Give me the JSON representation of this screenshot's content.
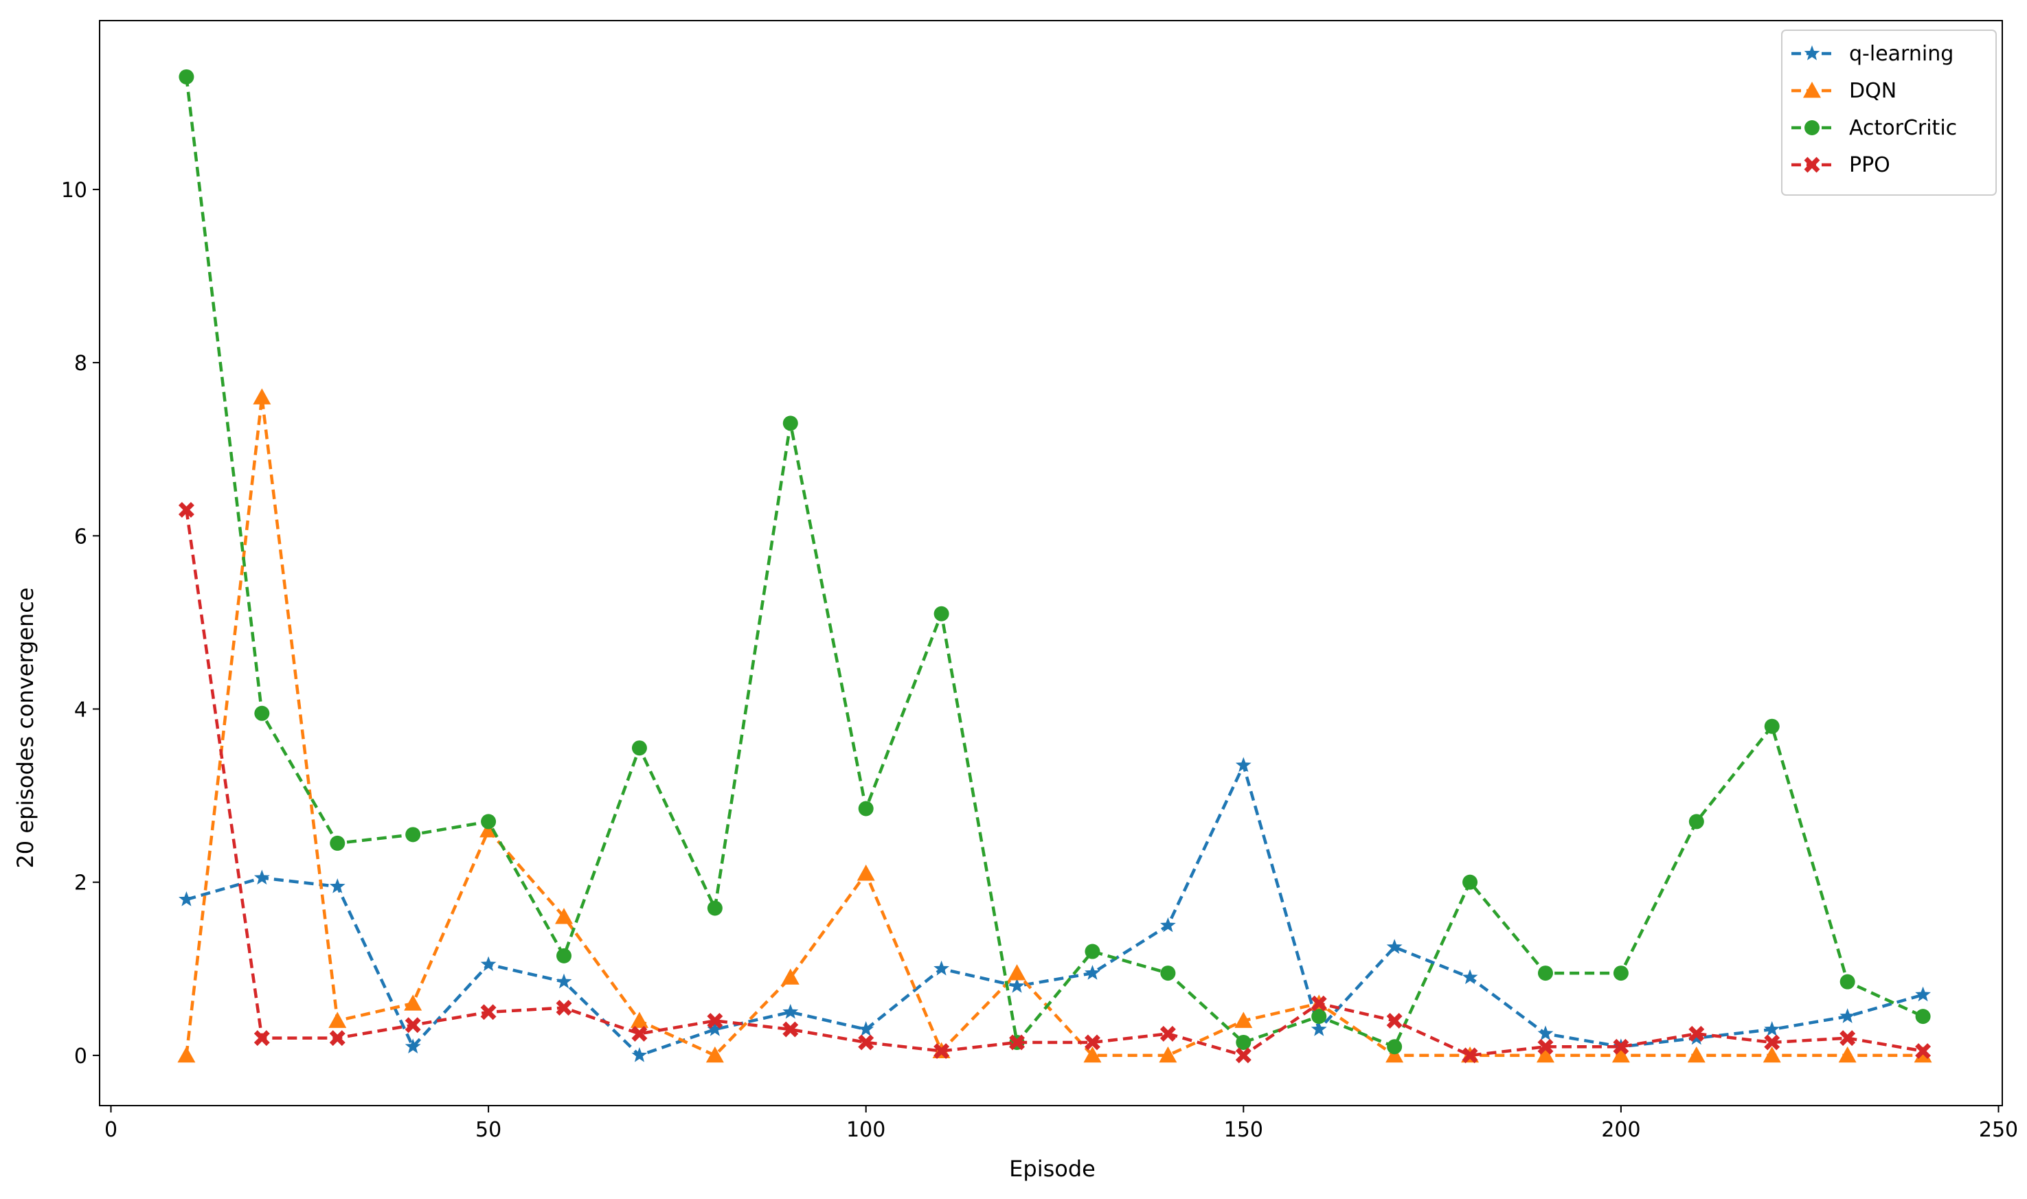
{
  "chart_data": {
    "type": "line",
    "title": "",
    "xlabel": "Episode",
    "ylabel": "20 episodes convergence",
    "xlim": [
      -1.5,
      250.5
    ],
    "ylim": [
      -0.58,
      11.95
    ],
    "xticks": [
      0,
      50,
      100,
      150,
      200,
      250
    ],
    "yticks": [
      0,
      2,
      4,
      6,
      8,
      10
    ],
    "grid": false,
    "legend_position": "top-right",
    "line_style": "dashed",
    "x": [
      10,
      20,
      30,
      40,
      50,
      60,
      70,
      80,
      90,
      100,
      110,
      120,
      130,
      140,
      150,
      160,
      170,
      180,
      190,
      200,
      210,
      220,
      230,
      240
    ],
    "series": [
      {
        "name": "q-learning",
        "color": "#1f77b4",
        "marker": "star",
        "values": [
          1.8,
          2.05,
          1.95,
          0.1,
          1.05,
          0.85,
          0.0,
          0.3,
          0.5,
          0.3,
          1.0,
          0.8,
          0.95,
          1.5,
          3.35,
          0.3,
          1.25,
          0.9,
          0.25,
          0.1,
          0.2,
          0.3,
          0.45,
          0.7
        ]
      },
      {
        "name": "DQN",
        "color": "#ff7f0e",
        "marker": "triangle",
        "values": [
          0.0,
          7.6,
          0.4,
          0.6,
          2.6,
          1.6,
          0.4,
          0.0,
          0.9,
          2.1,
          0.05,
          0.95,
          0.0,
          0.0,
          0.4,
          0.6,
          0.0,
          0.0,
          0.0,
          0.0,
          0.0,
          0.0,
          0.0,
          0.0
        ]
      },
      {
        "name": "ActorCritic",
        "color": "#2ca02c",
        "marker": "circle",
        "values": [
          11.3,
          3.95,
          2.45,
          2.55,
          2.7,
          1.15,
          3.55,
          1.7,
          7.3,
          2.85,
          5.1,
          0.15,
          1.2,
          0.95,
          0.15,
          0.45,
          0.1,
          2.0,
          0.95,
          0.95,
          2.7,
          3.8,
          0.85,
          0.45
        ]
      },
      {
        "name": "PPO",
        "color": "#d62728",
        "marker": "x",
        "values": [
          6.3,
          0.2,
          0.2,
          0.35,
          0.5,
          0.55,
          0.25,
          0.4,
          0.3,
          0.15,
          0.05,
          0.15,
          0.15,
          0.25,
          0.0,
          0.6,
          0.4,
          0.0,
          0.1,
          0.1,
          0.25,
          0.15,
          0.2,
          0.05
        ]
      }
    ]
  }
}
